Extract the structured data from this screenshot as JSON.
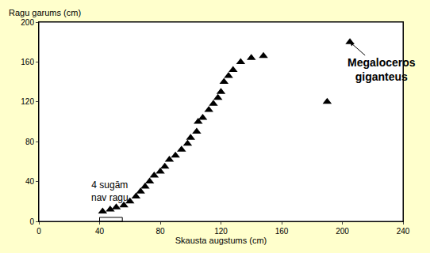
{
  "chart_data": {
    "type": "scatter",
    "x_label": "Skausta augstums (cm)",
    "y_label": "Ragu garums (cm)",
    "x": [
      42,
      47,
      51,
      56,
      60,
      64,
      67,
      70,
      73,
      76,
      80,
      83,
      86,
      90,
      94,
      98,
      100,
      104,
      105,
      108,
      112,
      115,
      118,
      120,
      122,
      125,
      128,
      133,
      140,
      148,
      190,
      205
    ],
    "values": [
      10,
      12,
      14,
      16,
      20,
      25,
      30,
      35,
      40,
      46,
      50,
      55,
      62,
      66,
      72,
      78,
      84,
      90,
      100,
      104,
      112,
      118,
      124,
      130,
      140,
      146,
      152,
      160,
      164,
      166,
      120,
      180
    ],
    "color": "#000000",
    "marker": "triangle-up",
    "xlim": [
      0,
      240
    ],
    "ylim": [
      0,
      200
    ],
    "xticks": [
      0,
      40,
      80,
      120,
      160,
      200,
      240
    ],
    "yticks": [
      0,
      40,
      80,
      120,
      160,
      200
    ],
    "grid": false,
    "no_antler_x": [
      40,
      55
    ],
    "annotations": [
      {
        "text": "Megaloceros\ngiganteus",
        "x": 205,
        "y": 180,
        "text_x": 226,
        "text_y": 152,
        "bold": true
      },
      {
        "text": "4 sugām\nnav ragu",
        "x": 47,
        "y": 2,
        "text_x": 47,
        "text_y": 30,
        "bold": false
      }
    ]
  }
}
